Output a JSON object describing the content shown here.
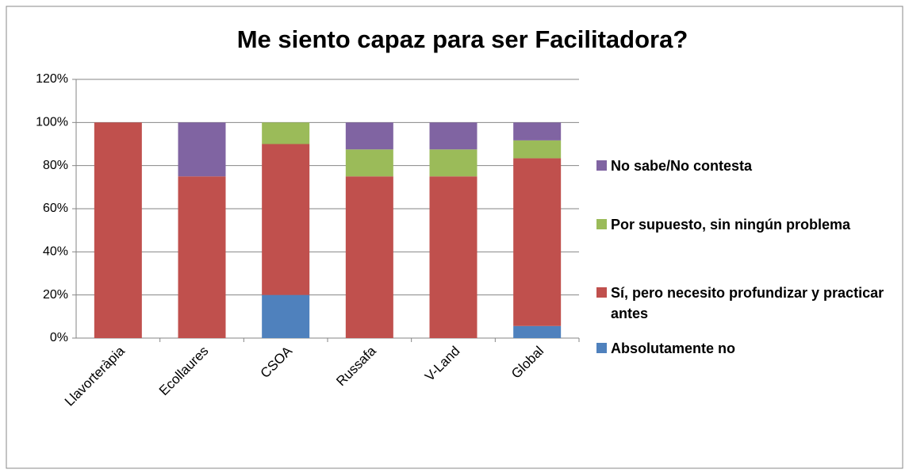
{
  "chart_data": {
    "type": "stacked_bar",
    "title": "Me siento capaz para ser Facilitadora?",
    "categories": [
      "Llavorteràpia",
      "Ecollaures",
      "CSOA",
      "Russafa",
      "V-Land",
      "Global"
    ],
    "series": [
      {
        "name": "Absolutamente no",
        "color": "#4f81bd",
        "values": [
          0,
          0,
          20,
          0,
          0,
          5.6
        ]
      },
      {
        "name": "Sí, pero necesito profundizar y practicar antes",
        "color": "#c0504d",
        "values": [
          100,
          75,
          70,
          75,
          75,
          77.8
        ]
      },
      {
        "name": "Por supuesto, sin ningún problema",
        "color": "#9bbb59",
        "values": [
          0,
          0,
          10,
          12.5,
          12.5,
          8.3
        ]
      },
      {
        "name": "No sabe/No contesta",
        "color": "#8064a2",
        "values": [
          0,
          25,
          0,
          12.5,
          12.5,
          8.3
        ]
      }
    ],
    "ylim": [
      0,
      120
    ],
    "yticks": [
      {
        "value": 0,
        "label": "0%"
      },
      {
        "value": 20,
        "label": "20%"
      },
      {
        "value": 40,
        "label": "40%"
      },
      {
        "value": 60,
        "label": "60%"
      },
      {
        "value": 80,
        "label": "80%"
      },
      {
        "value": 100,
        "label": "100%"
      },
      {
        "value": 120,
        "label": "120%"
      }
    ],
    "grid": true,
    "legend": "right"
  }
}
